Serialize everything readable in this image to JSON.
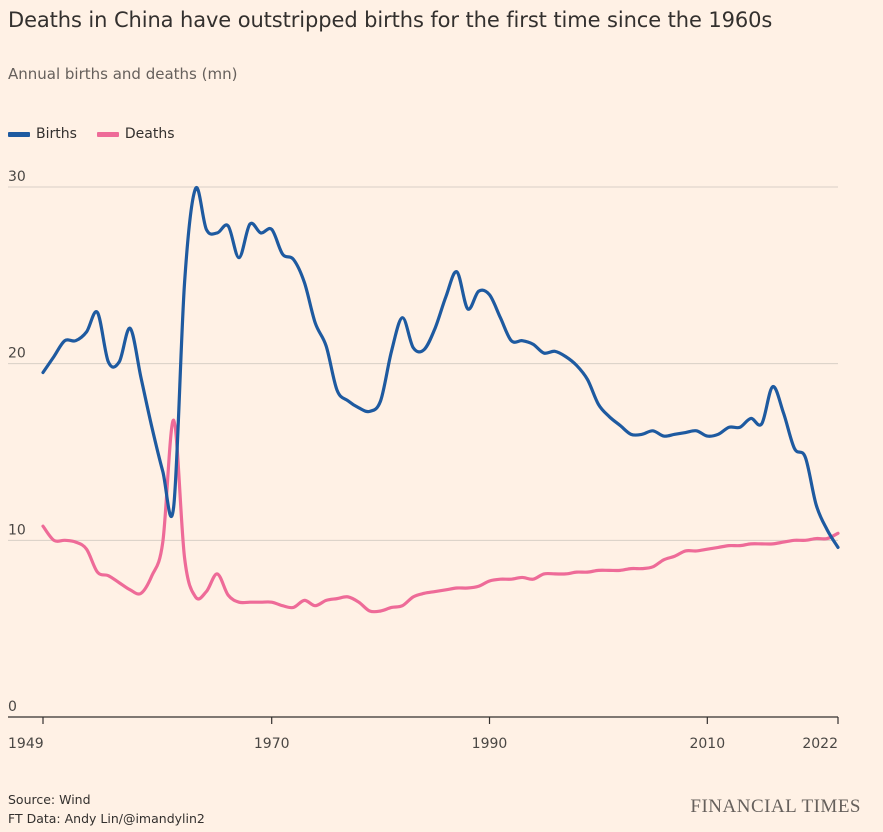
{
  "colors": {
    "background": "#fff1e5",
    "births": "#1e5aa0",
    "deaths": "#ee6b98",
    "grid": "#d8cfc6"
  },
  "header": {
    "title": "Deaths in China have outstripped births for the first time since the 1960s",
    "subtitle": "Annual births and deaths (mn)"
  },
  "footer": {
    "source": "Source: Wind",
    "credit": "FT Data: Andy Lin/@imandylin2",
    "brand": "FINANCIAL TIMES"
  },
  "chart_data": {
    "type": "line",
    "title": "Deaths in China have outstripped births for the first time since the 1960s",
    "subtitle": "Annual births and deaths (mn)",
    "xlabel": "",
    "ylabel": "",
    "xlim": [
      1949,
      2022
    ],
    "ylim": [
      0,
      30
    ],
    "grid": true,
    "legend": "top-left",
    "x_ticks": [
      1949,
      1970,
      1990,
      2010,
      2022
    ],
    "y_ticks": [
      0,
      10,
      20,
      30
    ],
    "x": [
      1949,
      1950,
      1951,
      1952,
      1953,
      1954,
      1955,
      1956,
      1957,
      1958,
      1959,
      1960,
      1961,
      1962,
      1963,
      1964,
      1965,
      1966,
      1967,
      1968,
      1969,
      1970,
      1971,
      1972,
      1973,
      1974,
      1975,
      1976,
      1977,
      1978,
      1979,
      1980,
      1981,
      1982,
      1983,
      1984,
      1985,
      1986,
      1987,
      1988,
      1989,
      1990,
      1991,
      1992,
      1993,
      1994,
      1995,
      1996,
      1997,
      1998,
      1999,
      2000,
      2001,
      2002,
      2003,
      2004,
      2005,
      2006,
      2007,
      2008,
      2009,
      2010,
      2011,
      2012,
      2013,
      2014,
      2015,
      2016,
      2017,
      2018,
      2019,
      2020,
      2021,
      2022
    ],
    "series": [
      {
        "name": "Births",
        "color": "#1e5aa0",
        "values": [
          19.5,
          20.4,
          21.3,
          21.3,
          21.8,
          22.9,
          20.1,
          20.1,
          22.0,
          19.2,
          16.4,
          13.9,
          11.9,
          24.6,
          29.9,
          27.6,
          27.4,
          27.8,
          26.0,
          27.9,
          27.4,
          27.6,
          26.2,
          25.9,
          24.6,
          22.3,
          21.0,
          18.5,
          17.9,
          17.5,
          17.3,
          17.9,
          20.7,
          22.6,
          20.9,
          20.8,
          22.0,
          23.8,
          25.2,
          23.1,
          24.1,
          23.9,
          22.6,
          21.3,
          21.3,
          21.1,
          20.6,
          20.7,
          20.4,
          19.9,
          19.1,
          17.7,
          17.0,
          16.5,
          16.0,
          16.0,
          16.2,
          15.9,
          16.0,
          16.1,
          16.2,
          15.9,
          16.0,
          16.4,
          16.4,
          16.9,
          16.6,
          18.7,
          17.2,
          15.2,
          14.7,
          12.0,
          10.6,
          9.6
        ]
      },
      {
        "name": "Deaths",
        "color": "#ee6b98",
        "values": [
          10.8,
          10.0,
          10.0,
          9.9,
          9.5,
          8.2,
          8.0,
          7.6,
          7.2,
          7.0,
          8.0,
          9.9,
          16.8,
          9.0,
          6.8,
          7.1,
          8.1,
          6.9,
          6.5,
          6.5,
          6.5,
          6.5,
          6.3,
          6.2,
          6.6,
          6.3,
          6.6,
          6.7,
          6.8,
          6.5,
          6.0,
          6.0,
          6.2,
          6.3,
          6.8,
          7.0,
          7.1,
          7.2,
          7.3,
          7.3,
          7.4,
          7.7,
          7.8,
          7.8,
          7.9,
          7.8,
          8.1,
          8.1,
          8.1,
          8.2,
          8.2,
          8.3,
          8.3,
          8.3,
          8.4,
          8.4,
          8.5,
          8.9,
          9.1,
          9.4,
          9.4,
          9.5,
          9.6,
          9.7,
          9.7,
          9.8,
          9.8,
          9.8,
          9.9,
          10.0,
          10.0,
          10.1,
          10.1,
          10.4
        ]
      }
    ]
  }
}
